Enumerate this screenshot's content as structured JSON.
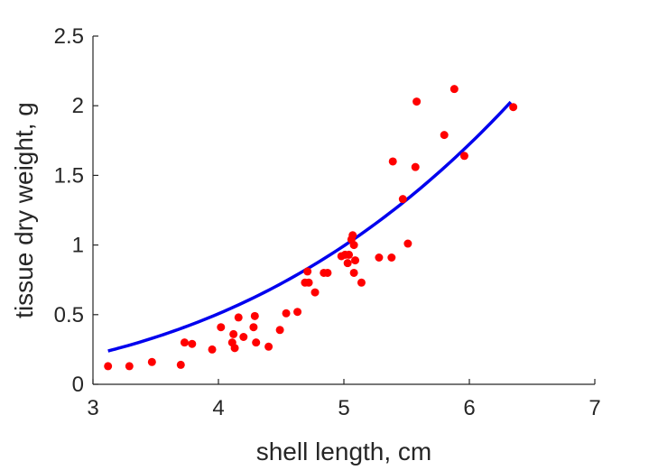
{
  "chart_data": {
    "type": "scatter",
    "title": "",
    "xlabel": "shell length, cm",
    "ylabel": "tissue dry weight, g",
    "xlim": [
      3,
      7
    ],
    "ylim": [
      0,
      2.5
    ],
    "xticks": [
      3,
      4,
      5,
      6,
      7
    ],
    "yticks": [
      0,
      0.5,
      1,
      1.5,
      2,
      2.5
    ],
    "xtick_labels": [
      "3",
      "4",
      "5",
      "6",
      "7"
    ],
    "ytick_labels": [
      "0",
      "0.5",
      "1",
      "1.5",
      "2",
      "2.5"
    ],
    "grid": false,
    "legend": "none",
    "series": [
      {
        "type": "scatter",
        "color": "#ff0000",
        "points": [
          [
            3.12,
            0.13
          ],
          [
            3.29,
            0.13
          ],
          [
            3.47,
            0.16
          ],
          [
            3.7,
            0.14
          ],
          [
            3.73,
            0.3
          ],
          [
            3.79,
            0.29
          ],
          [
            3.95,
            0.25
          ],
          [
            4.02,
            0.41
          ],
          [
            4.11,
            0.3
          ],
          [
            4.12,
            0.36
          ],
          [
            4.13,
            0.26
          ],
          [
            4.16,
            0.48
          ],
          [
            4.2,
            0.34
          ],
          [
            4.28,
            0.41
          ],
          [
            4.29,
            0.49
          ],
          [
            4.3,
            0.3
          ],
          [
            4.4,
            0.27
          ],
          [
            4.49,
            0.39
          ],
          [
            4.54,
            0.51
          ],
          [
            4.63,
            0.52
          ],
          [
            4.69,
            0.73
          ],
          [
            4.71,
            0.81
          ],
          [
            4.72,
            0.73
          ],
          [
            4.77,
            0.66
          ],
          [
            4.84,
            0.8
          ],
          [
            4.87,
            0.8
          ],
          [
            4.98,
            0.92
          ],
          [
            5.01,
            0.93
          ],
          [
            5.03,
            0.87
          ],
          [
            5.04,
            0.93
          ],
          [
            5.06,
            1.04
          ],
          [
            5.07,
            1.07
          ],
          [
            5.08,
            0.8
          ],
          [
            5.08,
            1.0
          ],
          [
            5.09,
            0.89
          ],
          [
            5.14,
            0.73
          ],
          [
            5.28,
            0.91
          ],
          [
            5.38,
            0.91
          ],
          [
            5.39,
            1.6
          ],
          [
            5.47,
            1.33
          ],
          [
            5.51,
            1.01
          ],
          [
            5.57,
            1.56
          ],
          [
            5.58,
            2.03
          ],
          [
            5.8,
            1.79
          ],
          [
            5.88,
            2.12
          ],
          [
            5.96,
            1.64
          ],
          [
            6.35,
            1.99
          ]
        ]
      },
      {
        "type": "line",
        "color": "#0000ee",
        "curve": "power",
        "a": 0.0077,
        "b": 3.02,
        "x_start": 3.12,
        "x_end": 6.33
      }
    ]
  }
}
